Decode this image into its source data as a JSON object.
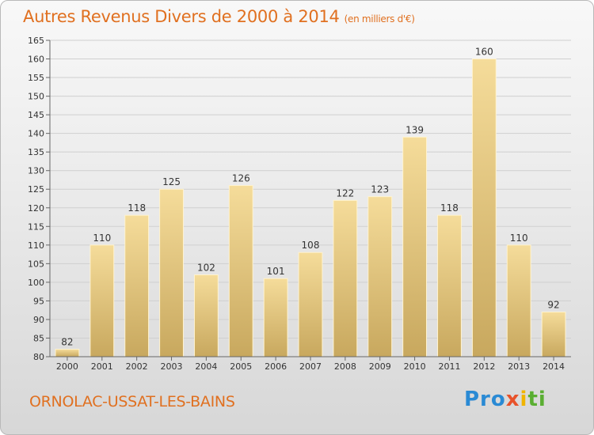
{
  "title": "Autres Revenus Divers de 2000 à 2014",
  "unit": "(en milliers d'€)",
  "commune": "ORNOLAC-USSAT-LES-BAINS",
  "logo": {
    "p1": "Pro",
    "p2": "x",
    "p3": "i",
    "p4": "ti"
  },
  "colors": {
    "bar_top": "#f5dc9a",
    "bar_bottom": "#c8a85e",
    "title": "#e07020"
  },
  "chart_data": {
    "type": "bar",
    "title": "Autres Revenus Divers de 2000 à 2014",
    "xlabel": "",
    "ylabel": "",
    "ylim": [
      80,
      165
    ],
    "yticks": [
      80,
      85,
      90,
      95,
      100,
      105,
      110,
      115,
      120,
      125,
      130,
      135,
      140,
      145,
      150,
      155,
      160,
      165
    ],
    "grid": true,
    "categories": [
      "2000",
      "2001",
      "2002",
      "2003",
      "2004",
      "2005",
      "2006",
      "2007",
      "2008",
      "2009",
      "2010",
      "2011",
      "2012",
      "2013",
      "2014"
    ],
    "values": [
      82,
      110,
      118,
      125,
      102,
      126,
      101,
      108,
      122,
      123,
      139,
      118,
      160,
      110,
      92
    ]
  }
}
